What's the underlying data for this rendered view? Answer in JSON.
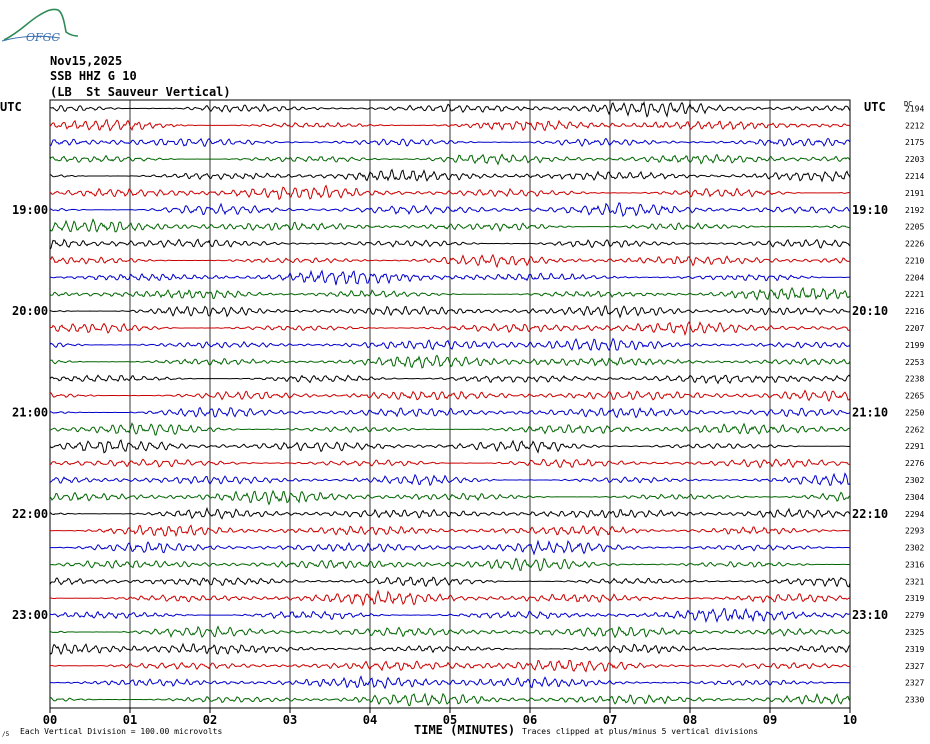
{
  "header": {
    "logo_text": "OFGC",
    "date": "Nov15,2025",
    "station": "SSB HHZ G 10",
    "location": "(LB  St Sauveur Vertical)"
  },
  "axis": {
    "left_unit": "UTC",
    "right_unit": "UTC",
    "dc_label": "DC",
    "xlabel": "TIME (MINUTES)",
    "xticks": [
      "00",
      "01",
      "02",
      "03",
      "04",
      "05",
      "06",
      "07",
      "08",
      "09",
      "10"
    ],
    "left_hour_labels": [
      "19:00",
      "20:00",
      "21:00",
      "22:00",
      "23:00"
    ],
    "right_hour_labels": [
      "19:10",
      "20:10",
      "21:10",
      "22:10",
      "23:10"
    ]
  },
  "footer": {
    "vertical_division": "Each Vertical Division =  100.00 microvolts",
    "clip_note": "Traces clipped at plus/minus 5 vertical divisions",
    "corner_mark": "/5"
  },
  "chart_data": {
    "type": "line",
    "xlim": [
      0,
      10
    ],
    "trace_minutes": 10,
    "trace_colors": [
      "#000000",
      "#cc0000",
      "#0000cc",
      "#006600"
    ],
    "dc_offsets": [
      2194,
      2212,
      2175,
      2203,
      2214,
      2191,
      2192,
      2205,
      2226,
      2210,
      2204,
      2221,
      2216,
      2207,
      2199,
      2253,
      2238,
      2265,
      2250,
      2262,
      2291,
      2276,
      2302,
      2304,
      2294,
      2293,
      2302,
      2316,
      2321,
      2319,
      2279,
      2325,
      2319,
      2327,
      2327,
      2330
    ]
  }
}
